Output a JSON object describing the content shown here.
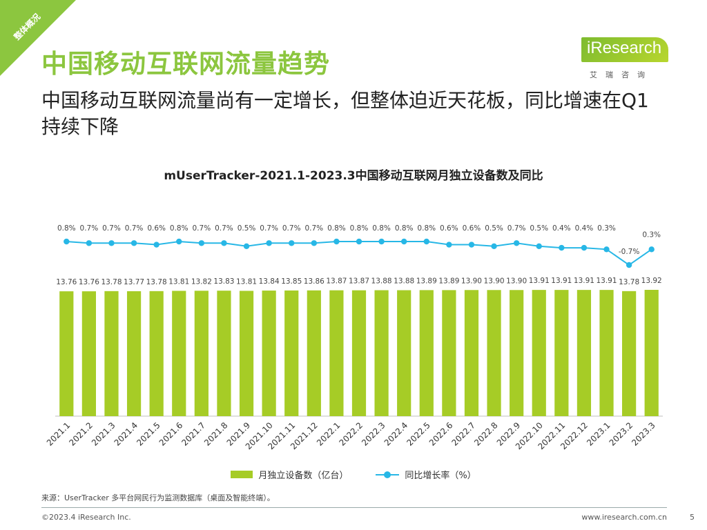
{
  "corner_label": "整体概况",
  "page_title": "中国移动互联网流量趋势",
  "subtitle": "中国移动互联网流量尚有一定增长，但整体迫近天花板，同比增速在Q1持续下降",
  "logo": {
    "main": "iResearch",
    "sub": "艾瑞咨询"
  },
  "chart_data": {
    "type": "bar",
    "title": "mUserTracker-2021.1-2023.3中国移动互联网月独立设备数及同比",
    "categories": [
      "2021.1",
      "2021.2",
      "2021.3",
      "2021.4",
      "2021.5",
      "2021.6",
      "2021.7",
      "2021.8",
      "2021.9",
      "2021.10",
      "2021.11",
      "2021.12",
      "2022.1",
      "2022.2",
      "2022.3",
      "2022.4",
      "2022.5",
      "2022.6",
      "2022.7",
      "2022.8",
      "2022.9",
      "2022.10",
      "2022.11",
      "2022.12",
      "2023.1",
      "2023.2",
      "2023.3"
    ],
    "series": [
      {
        "name": "月独立设备数（亿台）",
        "type": "bar",
        "color": "#a6cc26",
        "values": [
          13.76,
          13.76,
          13.78,
          13.77,
          13.78,
          13.81,
          13.82,
          13.83,
          13.81,
          13.84,
          13.85,
          13.86,
          13.87,
          13.87,
          13.88,
          13.88,
          13.89,
          13.89,
          13.9,
          13.9,
          13.9,
          13.91,
          13.91,
          13.91,
          13.91,
          13.78,
          13.92
        ],
        "labels": [
          "13.76",
          "13.76",
          "13.78",
          "13.77",
          "13.78",
          "13.81",
          "13.82",
          "13.83",
          "13.81",
          "13.84",
          "13.85",
          "13.86",
          "13.87",
          "13.87",
          "13.88",
          "13.88",
          "13.89",
          "13.89",
          "13.90",
          "13.90",
          "13.90",
          "13.91",
          "13.91",
          "13.91",
          "13.91",
          "13.78",
          "13.92"
        ]
      },
      {
        "name": "同比增长率（%）",
        "type": "line",
        "color": "#27b7e6",
        "values": [
          0.8,
          0.7,
          0.7,
          0.7,
          0.6,
          0.8,
          0.7,
          0.7,
          0.5,
          0.7,
          0.7,
          0.7,
          0.8,
          0.8,
          0.8,
          0.8,
          0.8,
          0.6,
          0.6,
          0.5,
          0.7,
          0.5,
          0.4,
          0.4,
          0.3,
          -0.7,
          0.3
        ],
        "labels": [
          "0.8%",
          "0.7%",
          "0.7%",
          "0.7%",
          "0.6%",
          "0.8%",
          "0.7%",
          "0.7%",
          "0.5%",
          "0.7%",
          "0.7%",
          "0.7%",
          "0.8%",
          "0.8%",
          "0.8%",
          "0.8%",
          "0.8%",
          "0.6%",
          "0.6%",
          "0.5%",
          "0.7%",
          "0.5%",
          "0.4%",
          "0.4%",
          "0.3%",
          "-0.7%",
          "0.3%"
        ]
      }
    ],
    "legend_position": "bottom",
    "grid": false
  },
  "source": "来源：UserTracker 多平台网民行为监测数据库（桌面及智能终端）。",
  "footer": {
    "copyright": "©2023.4 iResearch Inc.",
    "url": "www.iresearch.com.cn",
    "page": "5"
  }
}
